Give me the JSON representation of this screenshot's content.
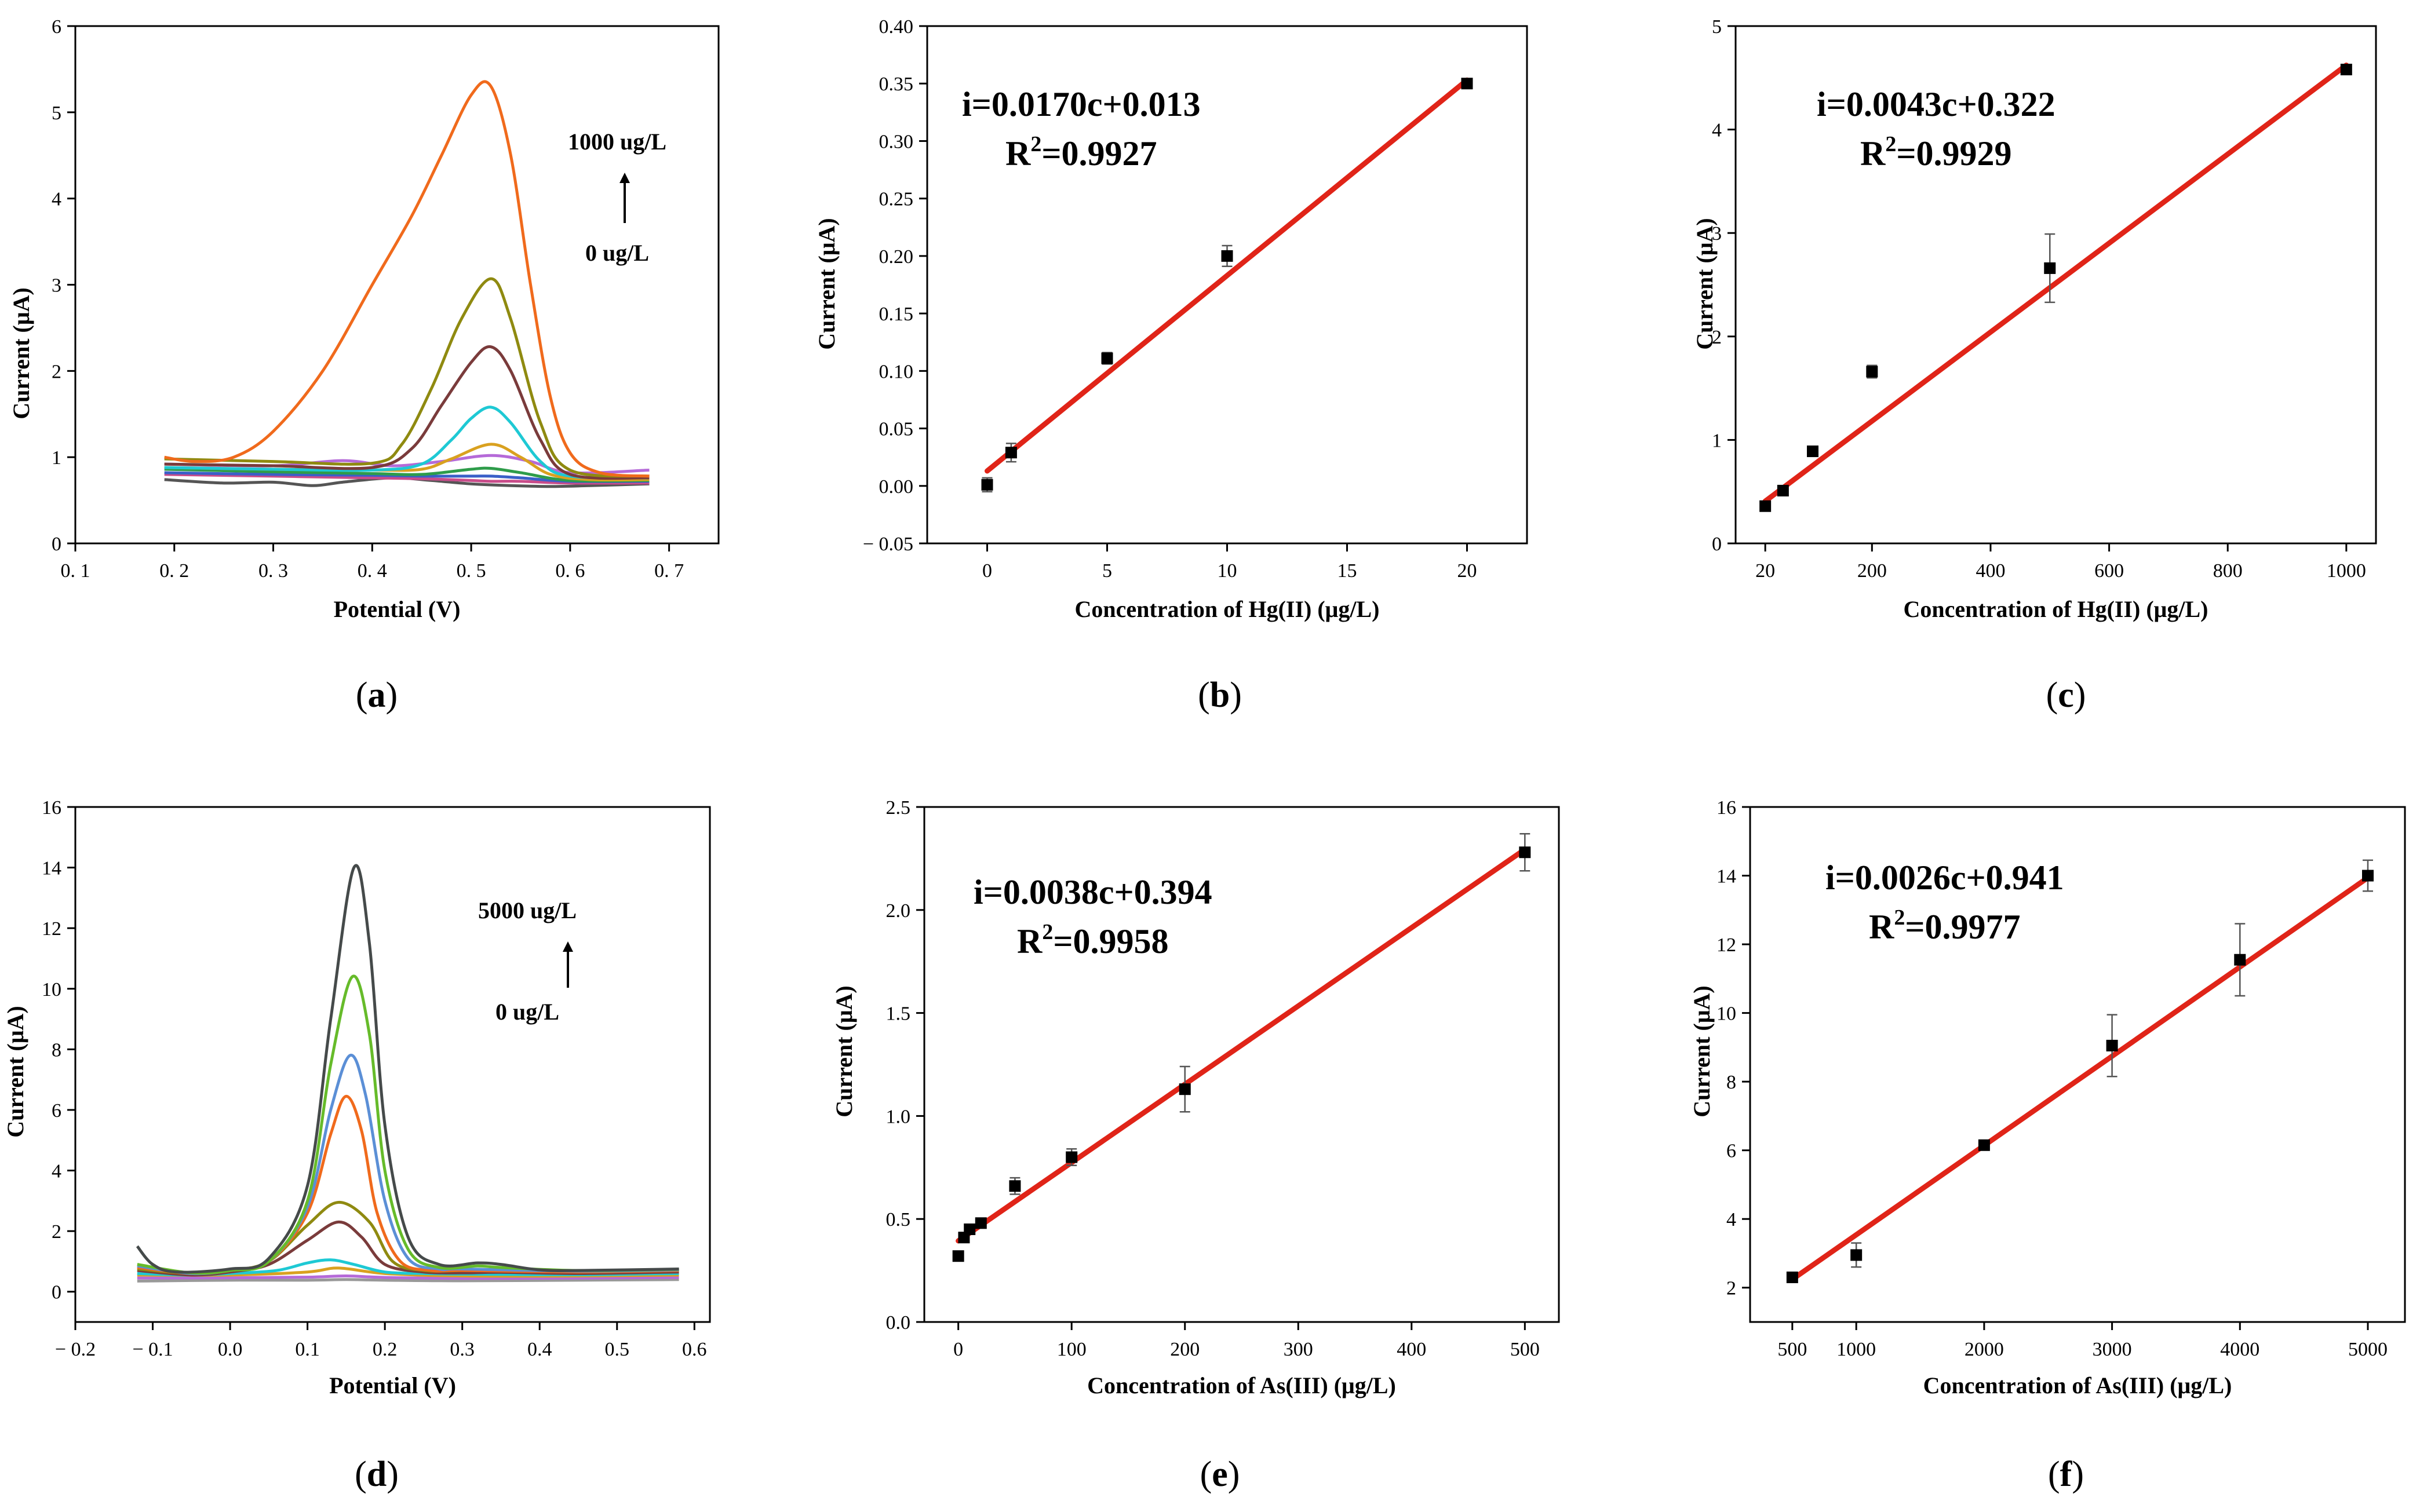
{
  "chart_data": [
    {
      "id": "a",
      "type": "line",
      "caption": "a",
      "xlabel": "Potential (V)",
      "ylabel": "Current (μA)",
      "xlim": [
        0.1,
        0.75
      ],
      "ylim": [
        0,
        6
      ],
      "xticks": [
        0.1,
        0.2,
        0.3,
        0.4,
        0.5,
        0.6,
        0.7
      ],
      "xtick_labels": [
        "0. 1",
        "0. 2",
        "0. 3",
        "0. 4",
        "0. 5",
        "0. 6",
        "0. 7"
      ],
      "yticks": [
        0,
        1,
        2,
        3,
        4,
        5,
        6
      ],
      "ytick_labels": [
        "0",
        "1",
        "2",
        "3",
        "4",
        "5",
        "6"
      ],
      "annotation_top": "1000 ug/L",
      "annotation_bottom": "0 ug/L",
      "series": [
        {
          "name": "s1",
          "color": "#555555",
          "x": [
            0.19,
            0.25,
            0.3,
            0.34,
            0.37,
            0.42,
            0.46,
            0.5,
            0.54,
            0.58,
            0.62,
            0.68
          ],
          "y": [
            0.74,
            0.7,
            0.71,
            0.67,
            0.71,
            0.76,
            0.73,
            0.69,
            0.67,
            0.66,
            0.67,
            0.69
          ]
        },
        {
          "name": "s2",
          "color": "#c94c8a",
          "x": [
            0.19,
            0.3,
            0.4,
            0.45,
            0.5,
            0.52,
            0.55,
            0.6,
            0.68
          ],
          "y": [
            0.8,
            0.78,
            0.76,
            0.75,
            0.73,
            0.72,
            0.72,
            0.7,
            0.7
          ]
        },
        {
          "name": "s3",
          "color": "#3a5fc8",
          "x": [
            0.19,
            0.3,
            0.4,
            0.45,
            0.5,
            0.52,
            0.55,
            0.6,
            0.68
          ],
          "y": [
            0.82,
            0.8,
            0.79,
            0.78,
            0.78,
            0.78,
            0.76,
            0.72,
            0.72
          ]
        },
        {
          "name": "s4",
          "color": "#2e9c4a",
          "x": [
            0.19,
            0.3,
            0.4,
            0.45,
            0.5,
            0.52,
            0.55,
            0.6,
            0.68
          ],
          "y": [
            0.86,
            0.83,
            0.81,
            0.8,
            0.86,
            0.87,
            0.82,
            0.73,
            0.73
          ]
        },
        {
          "name": "s5",
          "color": "#b56ad8",
          "x": [
            0.19,
            0.3,
            0.37,
            0.42,
            0.47,
            0.52,
            0.56,
            0.6,
            0.68
          ],
          "y": [
            0.92,
            0.9,
            0.96,
            0.9,
            0.95,
            1.02,
            0.95,
            0.82,
            0.85
          ]
        },
        {
          "name": "s6",
          "color": "#d9a11f",
          "x": [
            0.19,
            0.3,
            0.4,
            0.45,
            0.48,
            0.52,
            0.55,
            0.58,
            0.62,
            0.68
          ],
          "y": [
            0.88,
            0.86,
            0.85,
            0.86,
            0.98,
            1.15,
            1.0,
            0.8,
            0.74,
            0.74
          ]
        },
        {
          "name": "s7",
          "color": "#1ec9d4",
          "x": [
            0.19,
            0.3,
            0.4,
            0.45,
            0.48,
            0.5,
            0.52,
            0.54,
            0.57,
            0.6,
            0.68
          ],
          "y": [
            0.88,
            0.86,
            0.85,
            0.92,
            1.2,
            1.45,
            1.58,
            1.4,
            0.95,
            0.78,
            0.76
          ]
        },
        {
          "name": "s8",
          "color": "#7a3b3b",
          "x": [
            0.19,
            0.3,
            0.4,
            0.44,
            0.47,
            0.5,
            0.52,
            0.54,
            0.57,
            0.6,
            0.68
          ],
          "y": [
            0.92,
            0.9,
            0.88,
            1.1,
            1.6,
            2.1,
            2.28,
            2.0,
            1.2,
            0.8,
            0.76
          ]
        },
        {
          "name": "s9",
          "color": "#8f8a10",
          "x": [
            0.19,
            0.3,
            0.4,
            0.43,
            0.46,
            0.49,
            0.52,
            0.54,
            0.57,
            0.6,
            0.68
          ],
          "y": [
            0.98,
            0.95,
            0.93,
            1.15,
            1.8,
            2.6,
            3.07,
            2.6,
            1.4,
            0.85,
            0.78
          ]
        },
        {
          "name": "s10",
          "color": "#f06a1c",
          "x": [
            0.19,
            0.22,
            0.26,
            0.3,
            0.35,
            0.4,
            0.44,
            0.47,
            0.5,
            0.52,
            0.54,
            0.56,
            0.58,
            0.6,
            0.63,
            0.68
          ],
          "y": [
            1.0,
            0.95,
            1.0,
            1.3,
            2.0,
            3.0,
            3.8,
            4.5,
            5.2,
            5.3,
            4.5,
            3.0,
            1.7,
            1.05,
            0.82,
            0.78
          ]
        }
      ]
    },
    {
      "id": "b",
      "type": "scatter",
      "caption": "b",
      "xlabel": "Concentration of Hg(II) (μg/L)",
      "ylabel": "Current (μA)",
      "xlim": [
        -2.5,
        22.5
      ],
      "ylim": [
        -0.05,
        0.4
      ],
      "xticks": [
        0,
        5,
        10,
        15,
        20
      ],
      "xtick_labels": [
        "0",
        "5",
        "10",
        "15",
        "20"
      ],
      "yticks": [
        -0.05,
        0,
        0.05,
        0.1,
        0.15,
        0.2,
        0.25,
        0.3,
        0.35,
        0.4
      ],
      "ytick_labels": [
        "− 0.05",
        "0.00",
        "0.05",
        "0.10",
        "0.15",
        "0.20",
        "0.25",
        "0.30",
        "0.35",
        "0.40"
      ],
      "points": {
        "x": [
          0,
          1,
          5,
          10,
          20
        ],
        "y": [
          0.001,
          0.029,
          0.111,
          0.2,
          0.35
        ],
        "err": [
          0.006,
          0.008,
          0.005,
          0.009,
          0.004
        ]
      },
      "fit": {
        "slope": 0.017,
        "intercept": 0.013,
        "x_range": [
          0,
          20
        ]
      },
      "equation": "i=0.0170c+0.013",
      "r2_prefix": "R",
      "r2_sup": "2",
      "r2_value": "=0.9927"
    },
    {
      "id": "c",
      "type": "scatter",
      "caption": "c",
      "xlabel": "Concentration of Hg(II) (μg/L)",
      "ylabel": "Current (μA)",
      "xlim": [
        -30,
        1050
      ],
      "ylim": [
        0,
        5
      ],
      "xticks": [
        20,
        200,
        400,
        600,
        800,
        1000
      ],
      "xtick_labels": [
        "20",
        "200",
        "400",
        "600",
        "800",
        "1000"
      ],
      "yticks": [
        0,
        1,
        2,
        3,
        4,
        5
      ],
      "ytick_labels": [
        "0",
        "1",
        "2",
        "3",
        "4",
        "5"
      ],
      "points": {
        "x": [
          20,
          50,
          100,
          200,
          500,
          1000
        ],
        "y": [
          0.36,
          0.51,
          0.89,
          1.66,
          2.66,
          4.58
        ],
        "err": [
          0.02,
          0.03,
          0.04,
          0.06,
          0.33,
          0.04
        ]
      },
      "fit": {
        "slope": 0.0043,
        "intercept": 0.322,
        "x_range": [
          20,
          1000
        ]
      },
      "equation": "i=0.0043c+0.322",
      "r2_prefix": "R",
      "r2_sup": "2",
      "r2_value": "=0.9929"
    },
    {
      "id": "d",
      "type": "line",
      "caption": "d",
      "xlabel": "Potential (V)",
      "ylabel": "Current (μA)",
      "xlim": [
        -0.2,
        0.62
      ],
      "ylim": [
        -1,
        16
      ],
      "xticks": [
        -0.2,
        -0.1,
        0,
        0.1,
        0.2,
        0.3,
        0.4,
        0.5,
        0.6
      ],
      "xtick_labels": [
        "− 0.2",
        "− 0.1",
        "0.0",
        "0.1",
        "0.2",
        "0.3",
        "0.4",
        "0.5",
        "0.6"
      ],
      "yticks": [
        0,
        2,
        4,
        6,
        8,
        10,
        12,
        14,
        16
      ],
      "ytick_labels": [
        "0",
        "2",
        "4",
        "6",
        "8",
        "10",
        "12",
        "14",
        "16"
      ],
      "annotation_top": "5000  ug/L",
      "annotation_bottom": "0  ug/L",
      "series": [
        {
          "name": "s1",
          "color": "#999999",
          "x": [
            -0.12,
            0.0,
            0.1,
            0.15,
            0.2,
            0.3,
            0.45,
            0.58
          ],
          "y": [
            0.35,
            0.38,
            0.38,
            0.4,
            0.38,
            0.36,
            0.38,
            0.4
          ]
        },
        {
          "name": "s2",
          "color": "#b56ad8",
          "x": [
            -0.12,
            0.0,
            0.1,
            0.15,
            0.2,
            0.3,
            0.45,
            0.58
          ],
          "y": [
            0.45,
            0.46,
            0.48,
            0.52,
            0.47,
            0.44,
            0.45,
            0.47
          ]
        },
        {
          "name": "s3",
          "color": "#d9a11f",
          "x": [
            -0.12,
            0.0,
            0.1,
            0.14,
            0.2,
            0.3,
            0.45,
            0.58
          ],
          "y": [
            0.55,
            0.55,
            0.65,
            0.78,
            0.6,
            0.52,
            0.52,
            0.55
          ]
        },
        {
          "name": "s4",
          "color": "#1ec9d4",
          "x": [
            -0.12,
            -0.05,
            0.0,
            0.06,
            0.1,
            0.13,
            0.16,
            0.2,
            0.25,
            0.3,
            0.45,
            0.58
          ],
          "y": [
            0.6,
            0.55,
            0.6,
            0.7,
            0.95,
            1.05,
            0.9,
            0.65,
            0.6,
            0.58,
            0.56,
            0.6
          ]
        },
        {
          "name": "s5",
          "color": "#7a3b3b",
          "x": [
            -0.12,
            -0.05,
            0.0,
            0.05,
            0.1,
            0.14,
            0.17,
            0.2,
            0.25,
            0.3,
            0.35,
            0.45,
            0.58
          ],
          "y": [
            0.7,
            0.55,
            0.65,
            0.9,
            1.7,
            2.3,
            1.8,
            0.9,
            0.65,
            0.62,
            0.64,
            0.6,
            0.65
          ]
        },
        {
          "name": "s6",
          "color": "#8f8a10",
          "x": [
            -0.12,
            -0.05,
            0.0,
            0.05,
            0.1,
            0.14,
            0.18,
            0.21,
            0.25,
            0.3,
            0.35,
            0.45,
            0.58
          ],
          "y": [
            0.75,
            0.6,
            0.7,
            1.0,
            2.2,
            2.95,
            2.3,
            1.0,
            0.7,
            0.7,
            0.72,
            0.65,
            0.7
          ]
        },
        {
          "name": "s7",
          "color": "#f06a1c",
          "x": [
            -0.12,
            -0.05,
            0.0,
            0.05,
            0.1,
            0.13,
            0.15,
            0.17,
            0.19,
            0.22,
            0.26,
            0.3,
            0.45,
            0.58
          ],
          "y": [
            0.8,
            0.6,
            0.7,
            1.0,
            2.6,
            5.2,
            6.45,
            5.3,
            2.6,
            1.0,
            0.7,
            0.7,
            0.65,
            0.7
          ]
        },
        {
          "name": "s8",
          "color": "#5b8fd6",
          "x": [
            -0.12,
            -0.05,
            0.0,
            0.05,
            0.1,
            0.13,
            0.155,
            0.175,
            0.2,
            0.23,
            0.27,
            0.3,
            0.45,
            0.58
          ],
          "y": [
            0.85,
            0.6,
            0.7,
            1.0,
            2.8,
            6.0,
            7.8,
            6.5,
            3.0,
            1.1,
            0.75,
            0.75,
            0.68,
            0.72
          ]
        },
        {
          "name": "s9",
          "color": "#66bb2a",
          "x": [
            -0.12,
            -0.05,
            0.0,
            0.05,
            0.1,
            0.13,
            0.158,
            0.18,
            0.2,
            0.23,
            0.27,
            0.32,
            0.35,
            0.45,
            0.58
          ],
          "y": [
            0.9,
            0.62,
            0.7,
            1.0,
            3.0,
            7.5,
            10.4,
            8.5,
            4.0,
            1.4,
            0.8,
            0.85,
            0.8,
            0.7,
            0.74
          ]
        },
        {
          "name": "s10",
          "color": "#454a4a",
          "x": [
            -0.12,
            -0.1,
            -0.07,
            0.0,
            0.05,
            0.1,
            0.13,
            0.16,
            0.18,
            0.2,
            0.23,
            0.27,
            0.32,
            0.35,
            0.4,
            0.45,
            0.58
          ],
          "y": [
            1.5,
            0.9,
            0.65,
            0.75,
            1.1,
            3.5,
            9.0,
            14.0,
            11.5,
            5.5,
            1.8,
            0.9,
            0.95,
            0.9,
            0.72,
            0.7,
            0.75
          ]
        }
      ]
    },
    {
      "id": "e",
      "type": "scatter",
      "caption": "e",
      "xlabel": "Concentration of As(III) (μg/L)",
      "ylabel": "Current (μA)",
      "xlim": [
        -30,
        530
      ],
      "ylim": [
        0,
        2.5
      ],
      "xticks": [
        0,
        100,
        200,
        300,
        400,
        500
      ],
      "xtick_labels": [
        "0",
        "100",
        "200",
        "300",
        "400",
        "500"
      ],
      "yticks": [
        0,
        0.5,
        1,
        1.5,
        2,
        2.5
      ],
      "ytick_labels": [
        "0.0",
        "0.5",
        "1.0",
        "1.5",
        "2.0",
        "2.5"
      ],
      "points": {
        "x": [
          0,
          5,
          10,
          20,
          50,
          100,
          200,
          500
        ],
        "y": [
          0.32,
          0.41,
          0.45,
          0.48,
          0.66,
          0.8,
          1.13,
          2.28
        ],
        "err": [
          0.02,
          0.02,
          0.02,
          0.02,
          0.04,
          0.04,
          0.11,
          0.09
        ]
      },
      "fit": {
        "slope": 0.0038,
        "intercept": 0.394,
        "x_range": [
          0,
          500
        ]
      },
      "equation": "i=0.0038c+0.394",
      "r2_prefix": "R",
      "r2_sup": "2",
      "r2_value": "=0.9958"
    },
    {
      "id": "f",
      "type": "scatter",
      "caption": "f",
      "xlabel": "Concentration of As(III) (μg/L)",
      "ylabel": "Current (μA)",
      "xlim": [
        170,
        5290
      ],
      "ylim": [
        1,
        16
      ],
      "xticks": [
        500,
        1000,
        2000,
        3000,
        4000,
        5000
      ],
      "xtick_labels": [
        "500",
        "1000",
        "2000",
        "3000",
        "4000",
        "5000"
      ],
      "yticks": [
        2,
        4,
        6,
        8,
        10,
        12,
        14,
        16
      ],
      "ytick_labels": [
        "2",
        "4",
        "6",
        "8",
        "10",
        "12",
        "14",
        "16"
      ],
      "points": {
        "x": [
          500,
          1000,
          2000,
          3000,
          4000,
          5000
        ],
        "y": [
          2.3,
          2.95,
          6.15,
          9.05,
          11.55,
          14.0
        ],
        "err": [
          0.1,
          0.35,
          0.1,
          0.9,
          1.05,
          0.45
        ]
      },
      "fit": {
        "slope": 0.0026,
        "intercept": 0.941,
        "x_range": [
          500,
          5000
        ]
      },
      "equation": "i=0.0026c+0.941",
      "r2_prefix": "R",
      "r2_sup": "2",
      "r2_value": "=0.9977"
    }
  ]
}
